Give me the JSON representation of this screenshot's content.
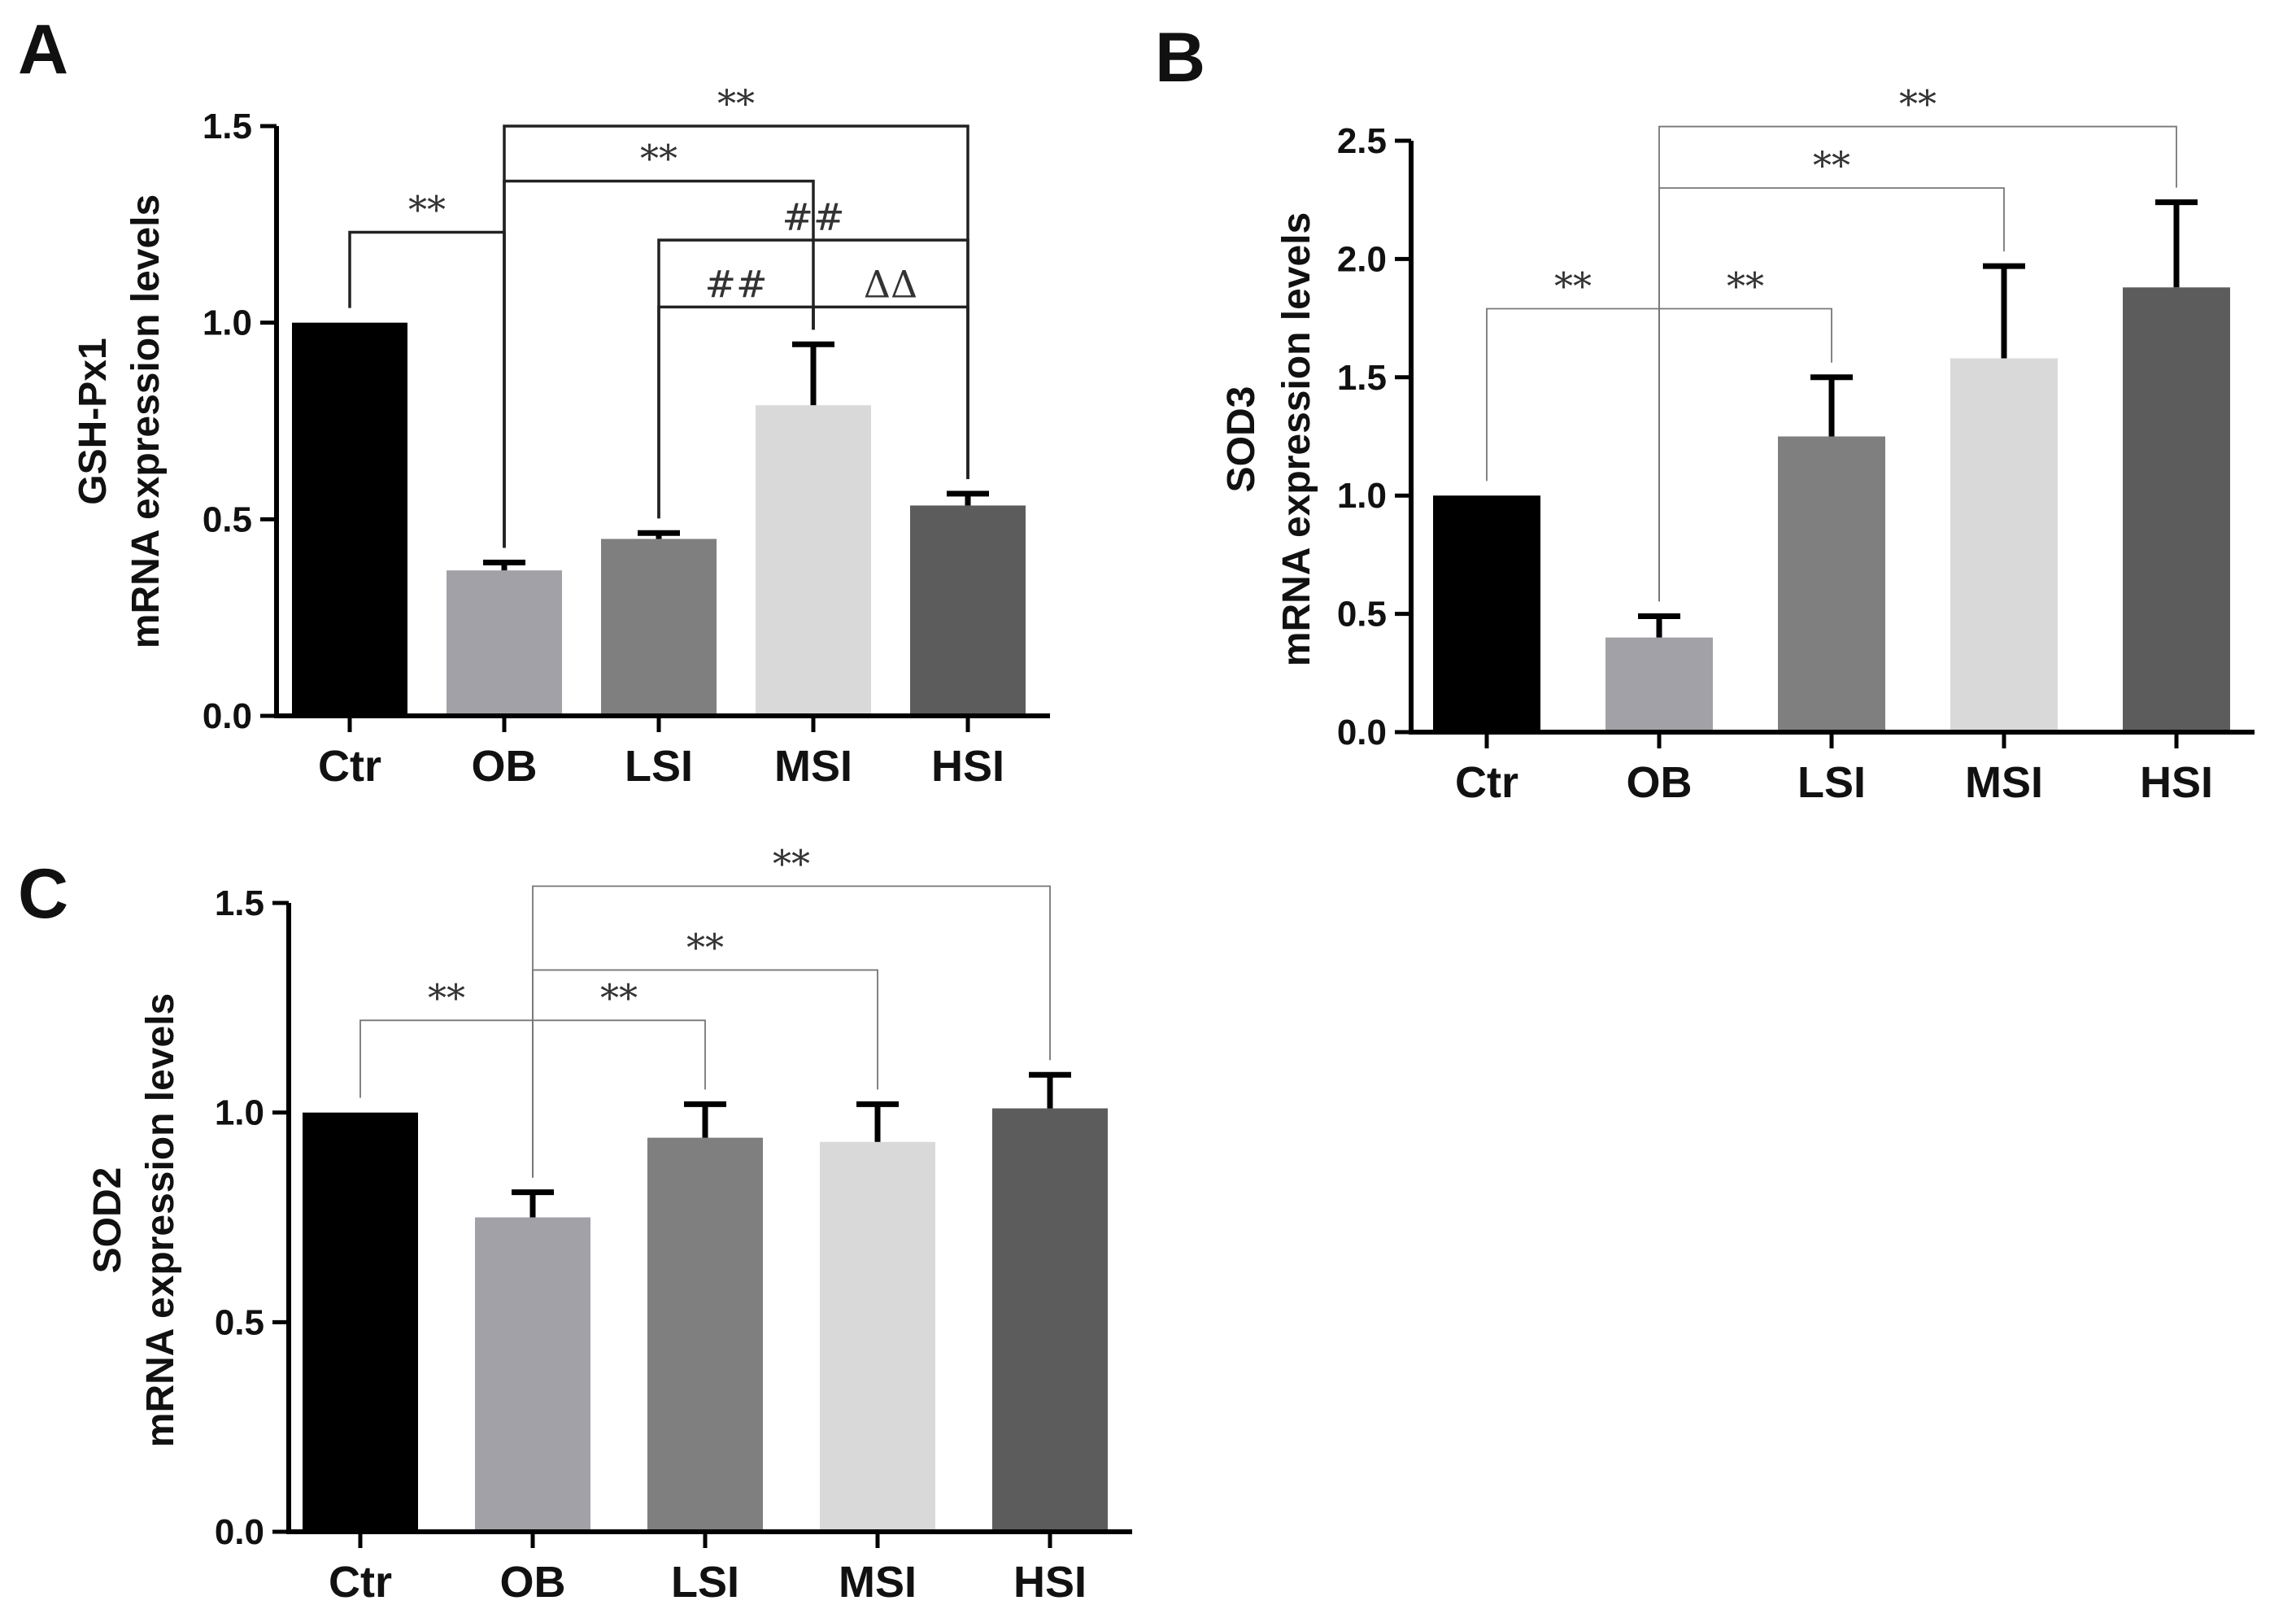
{
  "chart_data": [
    {
      "panel": "A",
      "type": "bar",
      "categories": [
        "Ctr",
        "OB",
        "LSI",
        "MSI",
        "HSI"
      ],
      "values": [
        1.0,
        0.37,
        0.45,
        0.79,
        0.535
      ],
      "errors": [
        0,
        0.02,
        0.015,
        0.155,
        0.03
      ],
      "colors": [
        "#000000",
        "#a3a1a8",
        "#7f7f7f",
        "#d9d9d9",
        "#5c5c5c"
      ],
      "ylabel_line1": "GSH-Px1",
      "ylabel_line2": "mRNA expression levels",
      "ylim": [
        0,
        1.5
      ],
      "yticks": [
        "0.0",
        "0.5",
        "1.0",
        "1.5"
      ],
      "significance": [
        {
          "from": 0,
          "to": 1,
          "text": "**",
          "y": 1.23
        },
        {
          "from": 1,
          "to": 3,
          "text": "**",
          "y": 1.36
        },
        {
          "from": 1,
          "to": 4,
          "text": "**",
          "y": 1.5
        },
        {
          "from": 2,
          "to": 3,
          "text": "##",
          "y": 1.04
        },
        {
          "from": 2,
          "to": 4,
          "text": "##",
          "y": 1.21
        },
        {
          "from": 3,
          "to": 4,
          "text": "ΔΔ",
          "y": 1.04
        }
      ]
    },
    {
      "panel": "B",
      "type": "bar",
      "categories": [
        "Ctr",
        "OB",
        "LSI",
        "MSI",
        "HSI"
      ],
      "values": [
        1.0,
        0.4,
        1.25,
        1.58,
        1.88
      ],
      "errors": [
        0,
        0.09,
        0.25,
        0.39,
        0.36
      ],
      "colors": [
        "#000000",
        "#a3a1a8",
        "#7f7f7f",
        "#d9d9d9",
        "#5c5c5c"
      ],
      "ylabel_line1": "SOD3",
      "ylabel_line2": "mRNA expression levels",
      "ylim": [
        0,
        2.5
      ],
      "yticks": [
        "0.0",
        "0.5",
        "1.0",
        "1.5",
        "2.0",
        "2.5"
      ],
      "significance": [
        {
          "from": 0,
          "to": 1,
          "text": "**",
          "y": 1.79
        },
        {
          "from": 1,
          "to": 2,
          "text": "**",
          "y": 1.79
        },
        {
          "from": 1,
          "to": 3,
          "text": "**",
          "y": 2.3
        },
        {
          "from": 1,
          "to": 4,
          "text": "**",
          "y": 2.56
        }
      ]
    },
    {
      "panel": "C",
      "type": "bar",
      "categories": [
        "Ctr",
        "OB",
        "LSI",
        "MSI",
        "HSI"
      ],
      "values": [
        1.0,
        0.75,
        0.94,
        0.93,
        1.01
      ],
      "errors": [
        0,
        0.06,
        0.08,
        0.09,
        0.08
      ],
      "colors": [
        "#000000",
        "#a3a1a8",
        "#7f7f7f",
        "#d9d9d9",
        "#5c5c5c"
      ],
      "ylabel_line1": "SOD2",
      "ylabel_line2": "mRNA expression levels",
      "ylim": [
        0,
        1.5
      ],
      "yticks": [
        "0.0",
        "0.5",
        "1.0",
        "1.5"
      ],
      "significance": [
        {
          "from": 0,
          "to": 1,
          "text": "**",
          "y": 1.22
        },
        {
          "from": 1,
          "to": 2,
          "text": "**",
          "y": 1.22
        },
        {
          "from": 1,
          "to": 3,
          "text": "**",
          "y": 1.34
        },
        {
          "from": 1,
          "to": 4,
          "text": "**",
          "y": 1.54
        }
      ]
    }
  ]
}
